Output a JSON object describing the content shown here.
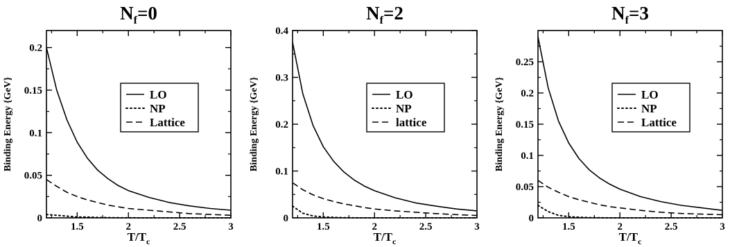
{
  "colors": {
    "line": "#000000",
    "background": "#ffffff"
  },
  "chart_data": [
    {
      "type": "line",
      "title": "N",
      "title_sub": "f",
      "title_rest": "=0",
      "xlabel": "T/T",
      "xlabel_sub": "c",
      "ylabel": "Binding Energy {GeV}",
      "xlim": [
        1.2,
        3.0
      ],
      "ylim": [
        0,
        0.22
      ],
      "xticks": [
        1.5,
        2,
        2.5,
        3
      ],
      "xtick_labels": [
        "1.5",
        "2",
        "2.5",
        "3"
      ],
      "yticks": [
        0,
        0.05,
        0.1,
        0.15,
        0.2
      ],
      "ytick_labels": [
        "0",
        "0.05",
        "0.1",
        "0.15",
        "0.2"
      ],
      "grid": false,
      "legend_position": "center-right",
      "x": [
        1.2,
        1.3,
        1.4,
        1.5,
        1.6,
        1.7,
        1.8,
        1.9,
        2.0,
        2.2,
        2.4,
        2.6,
        2.8,
        3.0
      ],
      "series": [
        {
          "name": "LO",
          "style": "solid",
          "values": [
            0.2,
            0.15,
            0.115,
            0.089,
            0.07,
            0.056,
            0.046,
            0.038,
            0.032,
            0.024,
            0.018,
            0.014,
            0.011,
            0.009
          ]
        },
        {
          "name": "NP",
          "style": "dotted",
          "values": [
            0.004,
            0.003,
            0.002,
            0.001,
            0.001,
            0.0005,
            0.0003,
            0.0002,
            0.0001,
            0,
            0,
            0,
            0,
            0
          ]
        },
        {
          "name": "Lattice",
          "style": "dashed",
          "values": [
            0.045,
            0.037,
            0.03,
            0.025,
            0.021,
            0.018,
            0.015,
            0.013,
            0.011,
            0.009,
            0.007,
            0.005,
            0.004,
            0.003
          ]
        }
      ]
    },
    {
      "type": "line",
      "title": "N",
      "title_sub": "f",
      "title_rest": "=2",
      "xlabel": "T/T",
      "xlabel_sub": "c",
      "ylabel": "Binding Energy {GeV}",
      "xlim": [
        1.2,
        3.0
      ],
      "ylim": [
        0,
        0.4
      ],
      "xticks": [
        1.5,
        2,
        2.5,
        3
      ],
      "xtick_labels": [
        "1.5",
        "2",
        "2.5",
        "3"
      ],
      "yticks": [
        0,
        0.1,
        0.2,
        0.3,
        0.4
      ],
      "ytick_labels": [
        "0",
        "0.1",
        "0.2",
        "0.3",
        "0.4"
      ],
      "grid": false,
      "legend_position": "center-right",
      "x": [
        1.2,
        1.3,
        1.4,
        1.5,
        1.6,
        1.7,
        1.8,
        1.9,
        2.0,
        2.2,
        2.4,
        2.6,
        2.8,
        3.0
      ],
      "series": [
        {
          "name": "LO",
          "style": "solid",
          "values": [
            0.375,
            0.265,
            0.197,
            0.152,
            0.121,
            0.098,
            0.081,
            0.068,
            0.058,
            0.043,
            0.032,
            0.025,
            0.019,
            0.015
          ]
        },
        {
          "name": "NP",
          "style": "dotted",
          "values": [
            0.025,
            0.01,
            0.004,
            0.002,
            0.001,
            0.0005,
            0.0002,
            0,
            0,
            0,
            0,
            0,
            0,
            0
          ]
        },
        {
          "name": "lattice",
          "style": "dashed",
          "values": [
            0.075,
            0.06,
            0.049,
            0.041,
            0.035,
            0.03,
            0.026,
            0.022,
            0.019,
            0.015,
            0.012,
            0.009,
            0.007,
            0.005
          ]
        }
      ]
    },
    {
      "type": "line",
      "title": "N",
      "title_sub": "f",
      "title_rest": "=3",
      "xlabel": "T/T",
      "xlabel_sub": "c",
      "ylabel": "Binding Energy {GeV}",
      "xlim": [
        1.2,
        3.0
      ],
      "ylim": [
        0,
        0.3
      ],
      "xticks": [
        1.5,
        2,
        2.5,
        3
      ],
      "xtick_labels": [
        "1.5",
        "2",
        "2.5",
        "3"
      ],
      "yticks": [
        0,
        0.05,
        0.1,
        0.15,
        0.2,
        0.25
      ],
      "ytick_labels": [
        "0",
        "0.05",
        "0.1",
        "0.15",
        "0.2",
        "0.25"
      ],
      "grid": false,
      "legend_position": "center-right",
      "x": [
        1.2,
        1.3,
        1.4,
        1.5,
        1.6,
        1.7,
        1.8,
        1.9,
        2.0,
        2.2,
        2.4,
        2.6,
        2.8,
        3.0
      ],
      "series": [
        {
          "name": "LO",
          "style": "solid",
          "values": [
            0.29,
            0.208,
            0.155,
            0.12,
            0.095,
            0.077,
            0.064,
            0.054,
            0.046,
            0.034,
            0.026,
            0.02,
            0.016,
            0.012
          ]
        },
        {
          "name": "NP",
          "style": "dotted",
          "values": [
            0.02,
            0.01,
            0.004,
            0.002,
            0.001,
            0.0005,
            0.0002,
            0,
            0,
            0,
            0,
            0,
            0,
            0
          ]
        },
        {
          "name": "Lattice",
          "style": "dashed",
          "values": [
            0.06,
            0.049,
            0.041,
            0.034,
            0.029,
            0.025,
            0.021,
            0.018,
            0.016,
            0.012,
            0.009,
            0.007,
            0.006,
            0.005
          ]
        }
      ]
    }
  ]
}
